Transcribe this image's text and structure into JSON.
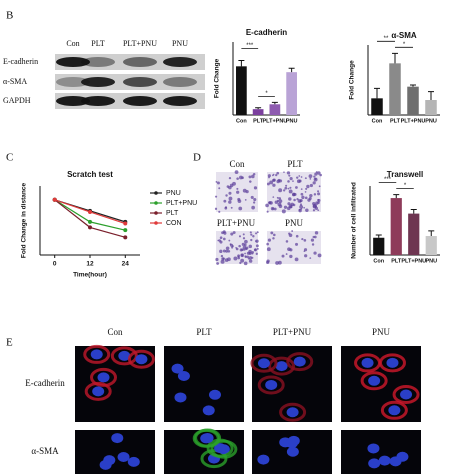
{
  "panel_labels": [
    "B",
    "C",
    "D",
    "E"
  ],
  "blot": {
    "columns": [
      "Con",
      "PLT",
      "PLT+PNU",
      "PNU"
    ],
    "rows": [
      "E-cadherin",
      "α-SMA",
      "GAPDH"
    ]
  },
  "micrographs": {
    "labels": [
      "Con",
      "PLT",
      "PLT+PNU",
      "PNU"
    ]
  },
  "immunofluorescence": {
    "columns": [
      "Con",
      "PLT",
      "PLT+PNU",
      "PNU"
    ],
    "rows": [
      "E-cadherin",
      "α-SMA"
    ]
  },
  "chart_data": [
    {
      "type": "bar",
      "title": "E-cadherin",
      "y_label": "Fold Change",
      "categories": [
        "Con",
        "PLT",
        "PLT+PNU",
        "PNU"
      ],
      "values": [
        1.0,
        0.12,
        0.22,
        0.88
      ],
      "errors": [
        0.12,
        0.03,
        0.04,
        0.08
      ],
      "colors": [
        "#111111",
        "#7b3f9e",
        "#8e5bb0",
        "#b9a3d6"
      ],
      "ylim": [
        0,
        1.5
      ],
      "annotations": [
        "***",
        "*"
      ]
    },
    {
      "type": "bar",
      "title": "α-SMA",
      "y_label": "Fold Change",
      "categories": [
        "Con",
        "PLT",
        "PLT+PNU",
        "PNU"
      ],
      "values": [
        1.0,
        3.1,
        1.7,
        0.9
      ],
      "errors": [
        0.6,
        0.6,
        0.1,
        0.5
      ],
      "colors": [
        "#111111",
        "#8a8a8a",
        "#6f6f6f",
        "#b5b5b5"
      ],
      "ylim": [
        0,
        4.2
      ],
      "annotations": [
        "**",
        "*"
      ]
    },
    {
      "type": "line",
      "title": "Scratch test",
      "x_label": "Time(hour)",
      "y_label": "Fold Change in distance",
      "x": [
        0,
        12,
        24
      ],
      "xlim": [
        -5,
        29
      ],
      "xticks": [
        0,
        12,
        24
      ],
      "ylim": [
        0,
        1.25
      ],
      "series": [
        {
          "name": "PNU",
          "color": "#222222",
          "values": [
            1.0,
            0.8,
            0.6
          ]
        },
        {
          "name": "PLT+PNU",
          "color": "#2ca02c",
          "values": [
            1.0,
            0.6,
            0.45
          ]
        },
        {
          "name": "PLT",
          "color": "#7a1f2b",
          "values": [
            1.0,
            0.5,
            0.32
          ]
        },
        {
          "name": "CON",
          "color": "#e03a3a",
          "values": [
            1.0,
            0.78,
            0.57
          ]
        }
      ]
    },
    {
      "type": "bar",
      "title": "Transwell",
      "y_label": "Number of cell infiltrated",
      "categories": [
        "Con",
        "PLT",
        "PLT+PNU",
        "PNU"
      ],
      "values": [
        50,
        165,
        120,
        55
      ],
      "errors": [
        8,
        10,
        12,
        15
      ],
      "colors": [
        "#111111",
        "#8e3b5a",
        "#6e3551",
        "#c8c8c8"
      ],
      "ylim": [
        0,
        200
      ],
      "annotations": [
        "***",
        "*"
      ]
    }
  ]
}
